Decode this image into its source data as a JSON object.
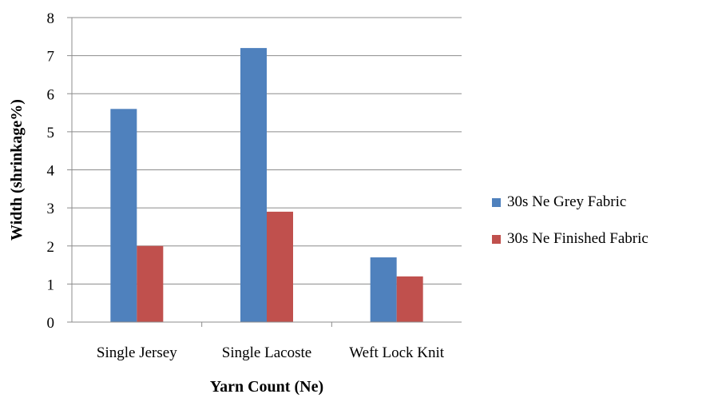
{
  "chart_data": {
    "type": "bar",
    "title": "",
    "xlabel": "Yarn Count (Ne)",
    "ylabel": "Width (shrinkage%)",
    "categories": [
      "Single Jersey",
      "Single Lacoste",
      "Weft Lock Knit"
    ],
    "series": [
      {
        "name": "30s Ne Grey Fabric",
        "color": "#4f81bd",
        "values": [
          5.6,
          7.2,
          1.7
        ]
      },
      {
        "name": "30s Ne Finished Fabric",
        "color": "#c0504d",
        "values": [
          2.0,
          2.9,
          1.2
        ]
      }
    ],
    "ylim": [
      0,
      8
    ],
    "yticks": [
      0,
      1,
      2,
      3,
      4,
      5,
      6,
      7,
      8
    ],
    "grid": true,
    "legend": "right"
  }
}
